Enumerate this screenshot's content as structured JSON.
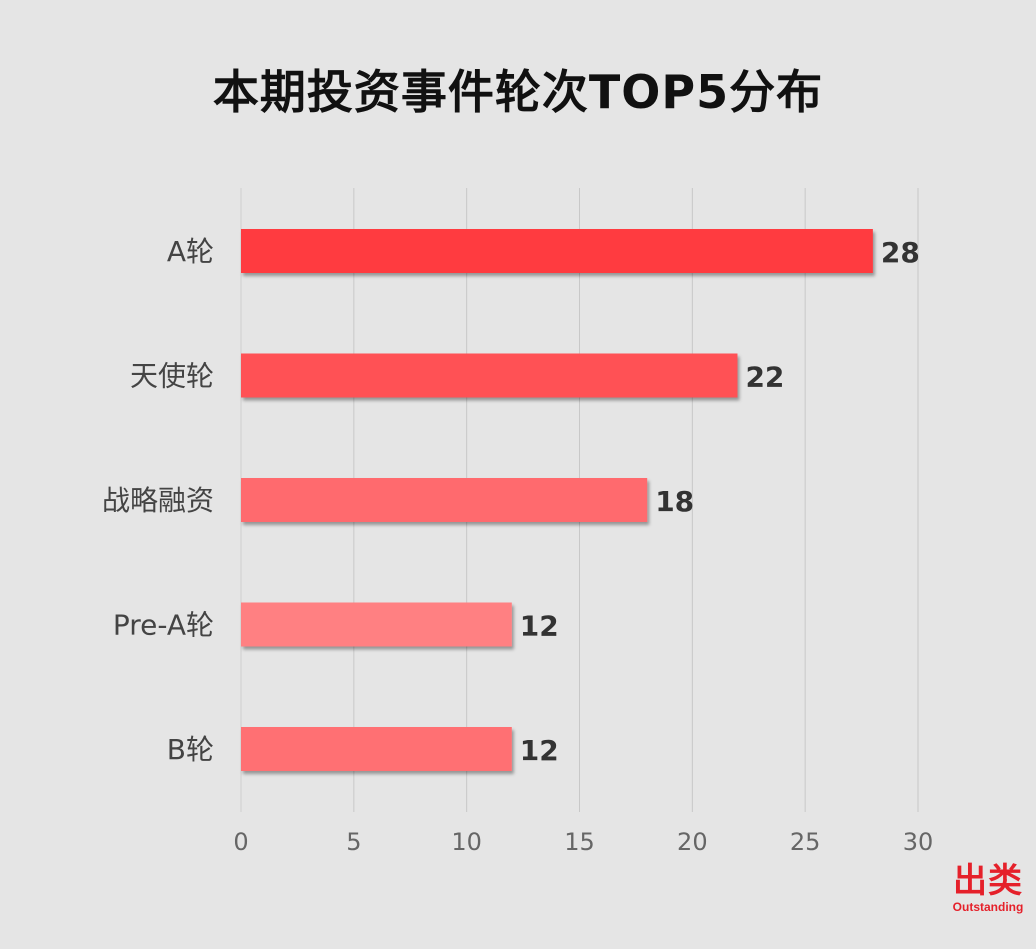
{
  "chart_data": {
    "type": "bar",
    "orientation": "horizontal",
    "title": "本期投资事件轮次TOP5分布",
    "categories": [
      "A轮",
      "天使轮",
      "战略融资",
      "Pre-A轮",
      "B轮"
    ],
    "values": [
      28,
      22,
      18,
      12,
      12
    ],
    "data_labels": [
      "28",
      "22",
      "18",
      "12",
      "12"
    ],
    "xlim": [
      0,
      30
    ],
    "xticks": [
      "0",
      "5",
      "10",
      "15",
      "20",
      "25",
      "30"
    ],
    "grid": "vertical",
    "legend": "none",
    "bar_colors": [
      "#ff3b3f",
      "#ff5155",
      "#ff6b6e",
      "#ff8082",
      "#ff7073"
    ]
  },
  "colors": {
    "background": "#e5e5e5",
    "gridline": "#c8c8c8",
    "category_text": "#444444",
    "value_text": "#333333",
    "tick_text": "#666666",
    "brand": "#e5202a"
  },
  "logo": {
    "main": "出类",
    "sub": "Outstanding"
  }
}
